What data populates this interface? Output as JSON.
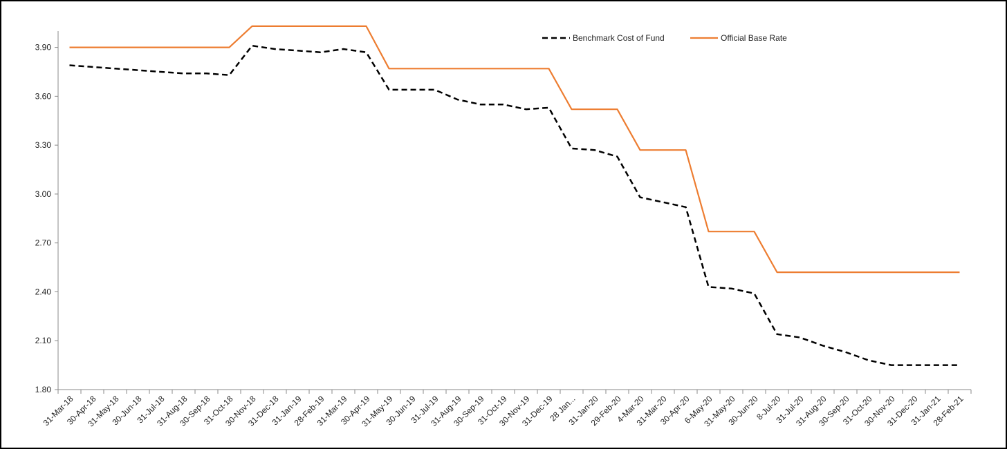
{
  "chart_data": {
    "type": "line",
    "title": "",
    "xlabel": "",
    "ylabel": "",
    "ylim": [
      1.8,
      4.0
    ],
    "yticks": [
      "1.80",
      "2.10",
      "2.40",
      "2.70",
      "3.00",
      "3.30",
      "3.60",
      "3.90"
    ],
    "grid": false,
    "legend_position": "top-right",
    "categories": [
      "31-Mar-18",
      "30-Apr-18",
      "31-May-18",
      "30-Jun-18",
      "31-Jul-18",
      "31-Aug-18",
      "30-Sep-18",
      "31-Oct-18",
      "30-Nov-18",
      "31-Dec-18",
      "31-Jan-19",
      "28-Feb-19",
      "31-Mar-19",
      "30-Apr-19",
      "31-May-19",
      "30-Jun-19",
      "31-Jul-19",
      "31-Aug-19",
      "30-Sep-19",
      "31-Oct-19",
      "30-Nov-19",
      "31-Dec-19",
      "28 Jan...",
      "31-Jan-20",
      "29-Feb-20",
      "4-Mar-20",
      "31-Mar-20",
      "30-Apr-20",
      "6-May-20",
      "31-May-20",
      "30-Jun-20",
      "8-Jul-20",
      "31-Jul-20",
      "31-Aug-20",
      "30-Sep-20",
      "31-Oct-20",
      "30-Nov-20",
      "31-Dec-20",
      "31-Jan-21",
      "28-Feb-21"
    ],
    "series": [
      {
        "name": "Benchmark Cost of Fund",
        "color": "#000000",
        "style": "dashed",
        "values": [
          3.79,
          3.78,
          3.77,
          3.76,
          3.75,
          3.74,
          3.74,
          3.73,
          3.91,
          3.89,
          3.88,
          3.87,
          3.89,
          3.87,
          3.64,
          3.64,
          3.64,
          3.58,
          3.55,
          3.55,
          3.52,
          3.53,
          3.28,
          3.27,
          3.23,
          2.98,
          2.95,
          2.92,
          2.43,
          2.42,
          2.39,
          2.14,
          2.12,
          2.07,
          2.03,
          1.98,
          1.95,
          1.95,
          1.95,
          1.95
        ]
      },
      {
        "name": "Official Base Rate",
        "color": "#ED7D31",
        "style": "solid",
        "values": [
          3.9,
          3.9,
          3.9,
          3.9,
          3.9,
          3.9,
          3.9,
          3.9,
          4.03,
          4.03,
          4.03,
          4.03,
          4.03,
          4.03,
          3.77,
          3.77,
          3.77,
          3.77,
          3.77,
          3.77,
          3.77,
          3.77,
          3.52,
          3.52,
          3.52,
          3.27,
          3.27,
          3.27,
          2.77,
          2.77,
          2.77,
          2.52,
          2.52,
          2.52,
          2.52,
          2.52,
          2.52,
          2.52,
          2.52,
          2.52
        ]
      }
    ]
  }
}
